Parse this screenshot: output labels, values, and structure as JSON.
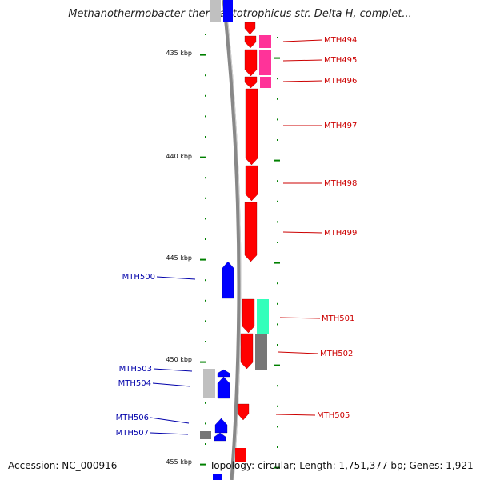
{
  "title": "Methanothermobacter thermautotrophicus str. Delta H, complet...",
  "accession": "Accession: NC_000916",
  "topology": "Topology: circular; Length: 1,751,377 bp; Genes: 1,921",
  "colors": {
    "forward_gene": "#ff0000",
    "reverse_gene": "#0000ff",
    "pink_feature": "#ff3399",
    "teal_feature": "#33ffbb",
    "grey_feature": "#777777",
    "light_grey_feature": "#c0c0c0",
    "ruler": "#008000",
    "forward_label": "#cc0000",
    "reverse_label": "#0000aa",
    "backbone": "#888888"
  },
  "scale_labels": [
    {
      "kbp": 435,
      "label": "435 kbp"
    },
    {
      "kbp": 440,
      "label": "440 kbp"
    },
    {
      "kbp": 445,
      "label": "445 kbp"
    },
    {
      "kbp": 450,
      "label": "450 kbp"
    },
    {
      "kbp": 455,
      "label": "455 kbp"
    }
  ],
  "genes": [
    {
      "label": "MTH494",
      "strand": "+"
    },
    {
      "label": "MTH495",
      "strand": "+"
    },
    {
      "label": "MTH496",
      "strand": "+"
    },
    {
      "label": "MTH497",
      "strand": "+"
    },
    {
      "label": "MTH498",
      "strand": "+"
    },
    {
      "label": "MTH499",
      "strand": "+"
    },
    {
      "label": "MTH500",
      "strand": "-"
    },
    {
      "label": "MTH501",
      "strand": "+"
    },
    {
      "label": "MTH502",
      "strand": "+"
    },
    {
      "label": "MTH503",
      "strand": "-"
    },
    {
      "label": "MTH504",
      "strand": "-"
    },
    {
      "label": "MTH505",
      "strand": "+"
    },
    {
      "label": "MTH506",
      "strand": "-"
    },
    {
      "label": "MTH507",
      "strand": "-"
    }
  ]
}
